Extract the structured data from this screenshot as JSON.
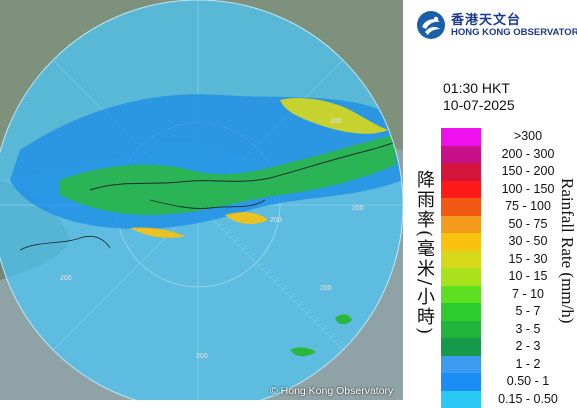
{
  "header": {
    "org_zh": "香港天文台",
    "org_en": "HONG KONG OBSERVATORY"
  },
  "timestamp": {
    "time": "01:30 HKT",
    "date": "10-07-2025"
  },
  "legend": {
    "title_zh": "降雨率(毫米/小時)",
    "title_en": "Rainfall Rate (mm/h)",
    "items": [
      {
        "label": ">300",
        "color": "#ee11ee"
      },
      {
        "label": "200 - 300",
        "color": "#c8108a"
      },
      {
        "label": "150 - 200",
        "color": "#d4163c"
      },
      {
        "label": "100 - 150",
        "color": "#ff1a1a"
      },
      {
        "label": "75 - 100",
        "color": "#f25a14"
      },
      {
        "label": "50 - 75",
        "color": "#f59b1c"
      },
      {
        "label": "30 - 50",
        "color": "#f9c20e"
      },
      {
        "label": "15 - 30",
        "color": "#d8d81a"
      },
      {
        "label": "10 - 15",
        "color": "#a8e21c"
      },
      {
        "label": "7 - 10",
        "color": "#5ee022"
      },
      {
        "label": "5 - 7",
        "color": "#2ccc2c"
      },
      {
        "label": "3 - 5",
        "color": "#20b43a"
      },
      {
        "label": "2 - 3",
        "color": "#149a48"
      },
      {
        "label": "1 - 2",
        "color": "#3c9af0"
      },
      {
        "label": "0.50 - 1",
        "color": "#1a8ef5"
      },
      {
        "label": "0.15 - 0.50",
        "color": "#2ac8f5"
      }
    ]
  },
  "map": {
    "range_labels": [
      "200",
      "200",
      "200",
      "200",
      "200",
      "200"
    ],
    "copyright": "© Hong Kong Observatory"
  }
}
